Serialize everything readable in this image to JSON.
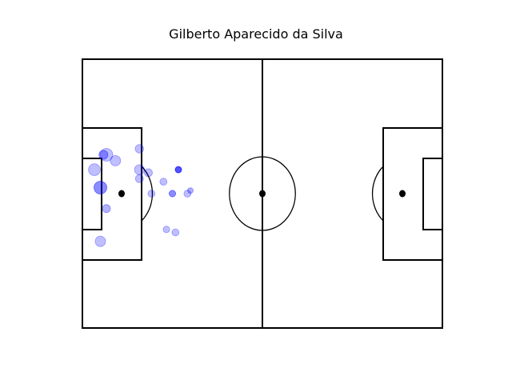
{
  "chart_data": {
    "type": "scatter",
    "title": "Gilberto Aparecido da Silva",
    "xlabel": "",
    "ylabel": "",
    "xlim": [
      0,
      120
    ],
    "ylim": [
      0,
      90
    ],
    "grid": false,
    "point_color": "#0000ff",
    "line_color": "#000000",
    "points": [
      {
        "x": 8,
        "y": 58,
        "size": 1.0,
        "alpha": 0.25
      },
      {
        "x": 7,
        "y": 58,
        "size": 0.6,
        "alpha": 0.35
      },
      {
        "x": 11,
        "y": 56,
        "size": 0.75,
        "alpha": 0.25
      },
      {
        "x": 19,
        "y": 60,
        "size": 0.55,
        "alpha": 0.25
      },
      {
        "x": 4,
        "y": 53,
        "size": 0.9,
        "alpha": 0.25
      },
      {
        "x": 19,
        "y": 53,
        "size": 0.7,
        "alpha": 0.25
      },
      {
        "x": 22,
        "y": 52,
        "size": 0.5,
        "alpha": 0.25
      },
      {
        "x": 19,
        "y": 50,
        "size": 0.5,
        "alpha": 0.25
      },
      {
        "x": 32,
        "y": 53,
        "size": 0.35,
        "alpha": 0.35
      },
      {
        "x": 32,
        "y": 53,
        "size": 0.3,
        "alpha": 0.5
      },
      {
        "x": 27,
        "y": 49,
        "size": 0.4,
        "alpha": 0.25
      },
      {
        "x": 6,
        "y": 47,
        "size": 1.0,
        "alpha": 0.45
      },
      {
        "x": 23,
        "y": 45,
        "size": 0.4,
        "alpha": 0.25
      },
      {
        "x": 30,
        "y": 45,
        "size": 0.35,
        "alpha": 0.45
      },
      {
        "x": 35,
        "y": 45,
        "size": 0.4,
        "alpha": 0.25
      },
      {
        "x": 36,
        "y": 46,
        "size": 0.25,
        "alpha": 0.3
      },
      {
        "x": 8,
        "y": 40,
        "size": 0.5,
        "alpha": 0.3
      },
      {
        "x": 28,
        "y": 33,
        "size": 0.35,
        "alpha": 0.25
      },
      {
        "x": 31,
        "y": 32,
        "size": 0.4,
        "alpha": 0.25
      },
      {
        "x": 6,
        "y": 29,
        "size": 0.75,
        "alpha": 0.25
      }
    ]
  }
}
